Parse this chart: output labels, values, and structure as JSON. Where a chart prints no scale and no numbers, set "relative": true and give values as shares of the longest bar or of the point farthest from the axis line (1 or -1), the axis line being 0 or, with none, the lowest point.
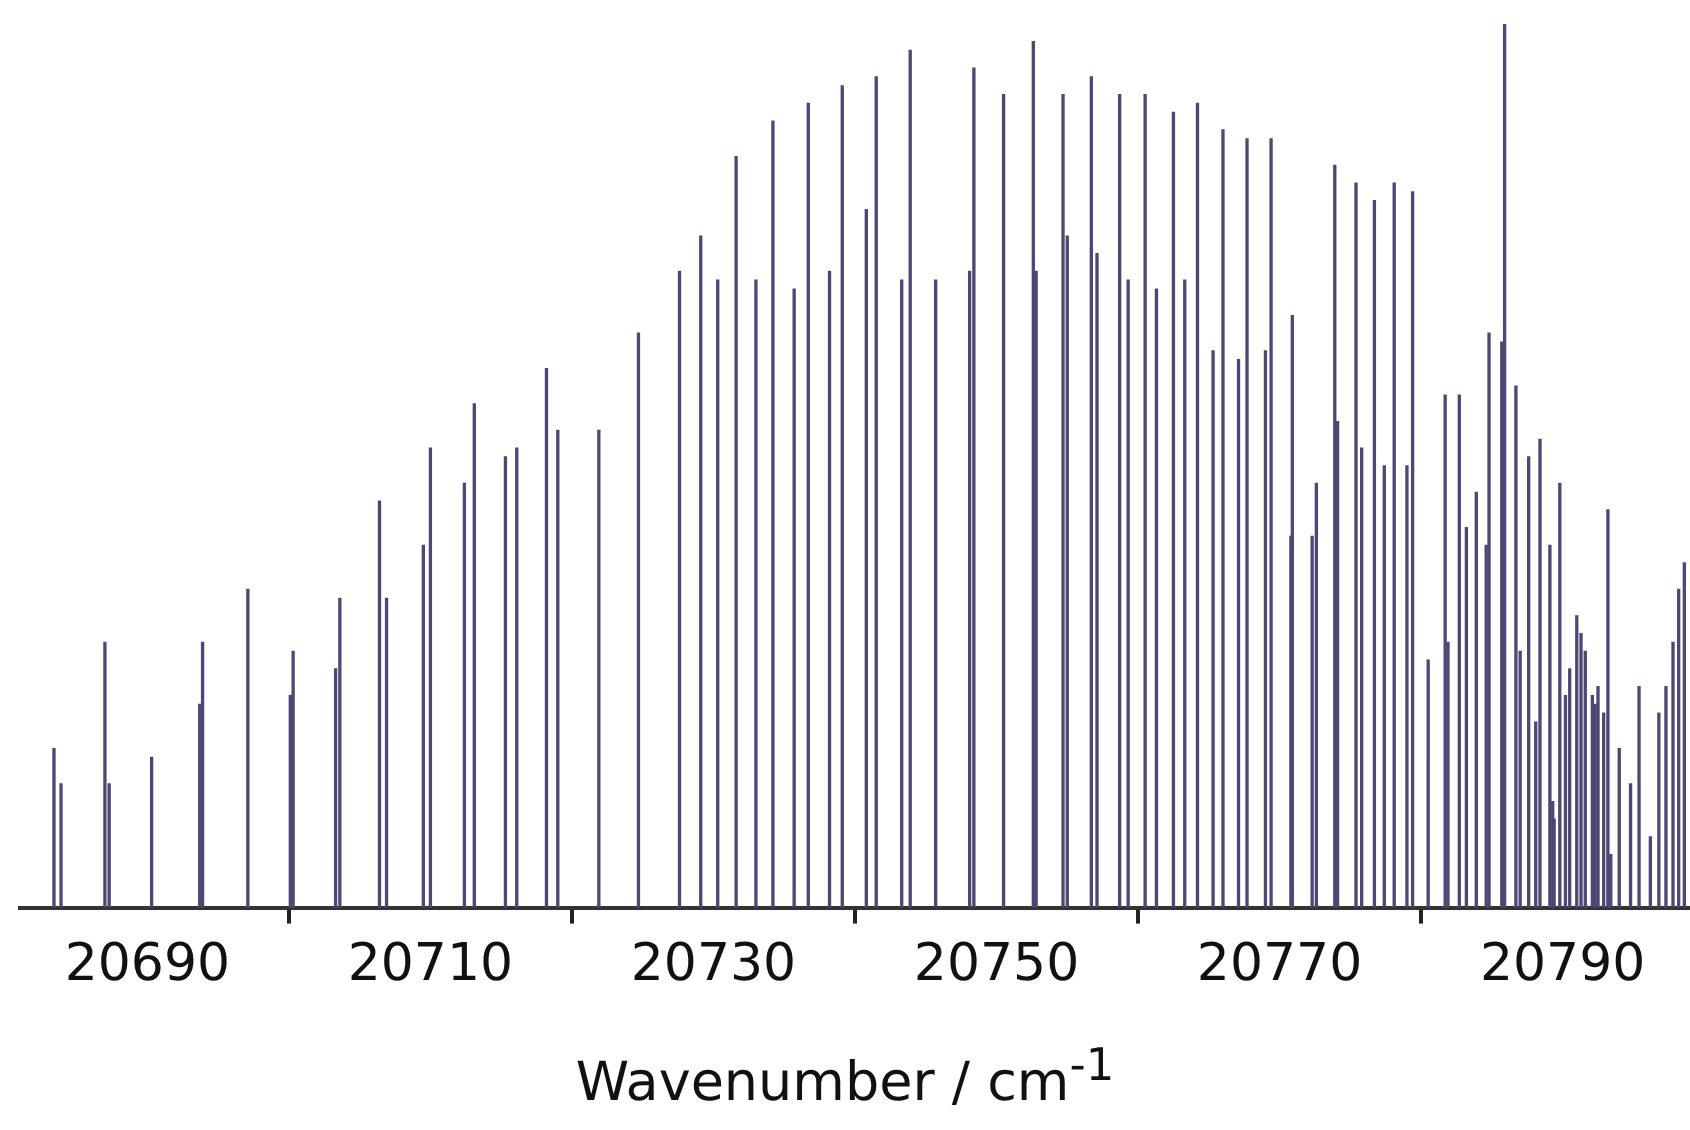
{
  "chart_data": {
    "type": "bar",
    "xlabel": "Wavenumber / cm$^{-1}$",
    "relative": true,
    "color": "#4b4874",
    "xlim": [
      20681,
      20799
    ],
    "xticks": [
      20690,
      20710,
      20730,
      20750,
      20770,
      20790
    ],
    "grid": false,
    "legend": false,
    "x": [
      20683.4,
      20683.9,
      20687.0,
      20687.3,
      20690.3,
      20693.7,
      20693.9,
      20697.1,
      20700.1,
      20700.3,
      20703.3,
      20703.6,
      20706.4,
      20706.9,
      20709.5,
      20710.0,
      20712.4,
      20713.1,
      20715.3,
      20716.1,
      20718.2,
      20719.0,
      20721.9,
      20724.7,
      20727.6,
      20729.1,
      20730.3,
      20731.6,
      20733.0,
      20734.2,
      20735.7,
      20736.7,
      20738.2,
      20739.1,
      20740.8,
      20741.5,
      20743.3,
      20743.9,
      20745.7,
      20748.1,
      20748.4,
      20750.5,
      20752.6,
      20752.8,
      20754.7,
      20755.0,
      20756.7,
      20757.1,
      20758.7,
      20759.3,
      20760.5,
      20761.3,
      20762.5,
      20763.3,
      20764.2,
      20765.3,
      20766.0,
      20767.1,
      20767.7,
      20769.0,
      20769.4,
      20770.8,
      20770.9,
      20772.3,
      20772.6,
      20773.9,
      20774.1,
      20775.4,
      20775.8,
      20776.7,
      20777.4,
      20778.1,
      20779.0,
      20779.4,
      20780.5,
      20781.7,
      20781.9,
      20782.7,
      20783.2,
      20783.9,
      20784.6,
      20784.8,
      20785.7,
      20785.9,
      20786.7,
      20787.0,
      20787.6,
      20788.1,
      20788.4,
      20789.1,
      20789.3,
      20789.4,
      20789.8,
      20790.2,
      20790.5,
      20791.0,
      20791.3,
      20791.6,
      20792.1,
      20792.3,
      20792.5,
      20792.9,
      20793.2,
      20793.4,
      20794.0,
      20794.8,
      20795.4,
      20796.2,
      20796.8,
      20797.3,
      20797.8,
      20798.2,
      20798.6
    ],
    "values": [
      0.18,
      0.14,
      0.3,
      0.14,
      0.17,
      0.23,
      0.3,
      0.36,
      0.24,
      0.29,
      0.27,
      0.35,
      0.46,
      0.35,
      0.41,
      0.52,
      0.48,
      0.57,
      0.51,
      0.52,
      0.61,
      0.54,
      0.54,
      0.65,
      0.72,
      0.76,
      0.71,
      0.85,
      0.71,
      0.89,
      0.7,
      0.91,
      0.72,
      0.93,
      0.79,
      0.94,
      0.71,
      0.97,
      0.71,
      0.72,
      0.95,
      0.92,
      0.98,
      0.72,
      0.92,
      0.76,
      0.94,
      0.74,
      0.92,
      0.71,
      0.92,
      0.7,
      0.9,
      0.71,
      0.91,
      0.63,
      0.88,
      0.62,
      0.87,
      0.63,
      0.87,
      0.42,
      0.67,
      0.42,
      0.48,
      0.84,
      0.55,
      0.82,
      0.52,
      0.8,
      0.5,
      0.82,
      0.5,
      0.81,
      0.28,
      0.58,
      0.3,
      0.58,
      0.43,
      0.47,
      0.41,
      0.65,
      0.64,
      1.0,
      0.59,
      0.29,
      0.51,
      0.21,
      0.53,
      0.41,
      0.12,
      0.1,
      0.48,
      0.24,
      0.27,
      0.33,
      0.31,
      0.29,
      0.24,
      0.23,
      0.25,
      0.22,
      0.45,
      0.06,
      0.18,
      0.14,
      0.25,
      0.08,
      0.22,
      0.25,
      0.3,
      0.36,
      0.39
    ]
  }
}
